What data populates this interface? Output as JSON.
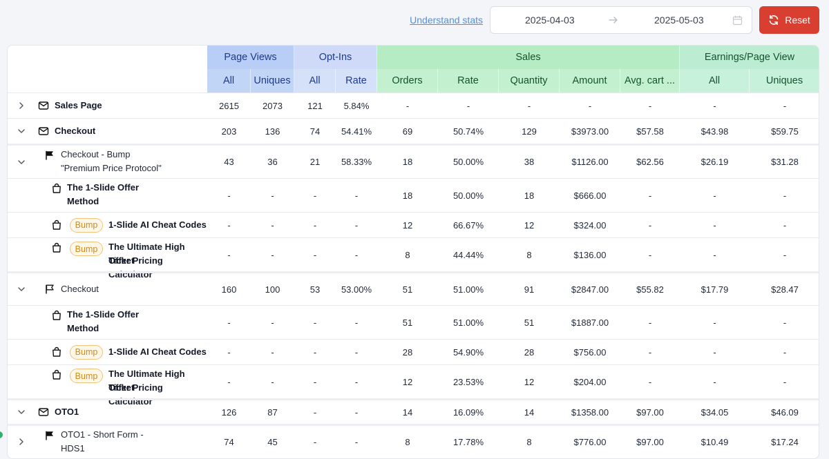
{
  "toolbar": {
    "stats_link": "Understand stats",
    "date_from": "2025-04-03",
    "date_to": "2025-05-03",
    "reset_label": "Reset"
  },
  "header": {
    "groups": {
      "page_views": "Page Views",
      "opt_ins": "Opt-Ins",
      "sales": "Sales",
      "earnings": "Earnings/Page View"
    },
    "columns": [
      "All",
      "Uniques",
      "All",
      "Rate",
      "Orders",
      "Rate",
      "Quantity",
      "Amount",
      "Avg. cart ...",
      "All",
      "Uniques"
    ]
  },
  "rows": [
    {
      "kind": "page",
      "label": "Sales Page",
      "chevron": "right",
      "values": [
        "2615",
        "2073",
        "121",
        "5.84%",
        "-",
        "-",
        "-",
        "-",
        "-",
        "-",
        "-"
      ]
    },
    {
      "kind": "page",
      "label": "Checkout",
      "chevron": "down",
      "values": [
        "203",
        "136",
        "74",
        "54.41%",
        "69",
        "50.74%",
        "129",
        "$3973.00",
        "$57.58",
        "$43.98",
        "$59.75"
      ]
    },
    {
      "kind": "variant",
      "label": "Checkout - Bump",
      "label2": "\"Premium Price Protocol\"",
      "chevron": "down",
      "flag": "filled",
      "values": [
        "43",
        "36",
        "21",
        "58.33%",
        "18",
        "50.00%",
        "38",
        "$1126.00",
        "$62.56",
        "$26.19",
        "$31.28"
      ]
    },
    {
      "kind": "product",
      "label": "The 1-Slide Offer",
      "label2": "Method",
      "values": [
        "-",
        "-",
        "-",
        "-",
        "18",
        "50.00%",
        "18",
        "$666.00",
        "-",
        "-",
        "-"
      ]
    },
    {
      "kind": "product",
      "badge": "Bump",
      "label": "1-Slide AI Cheat Codes",
      "values": [
        "-",
        "-",
        "-",
        "-",
        "12",
        "66.67%",
        "12",
        "$324.00",
        "-",
        "-",
        "-"
      ]
    },
    {
      "kind": "product",
      "badge": "Bump",
      "label": "The Ultimate High Ticket",
      "label2": "Offer Pricing Calculator",
      "values": [
        "-",
        "-",
        "-",
        "-",
        "8",
        "44.44%",
        "8",
        "$136.00",
        "-",
        "-",
        "-"
      ]
    },
    {
      "kind": "variant",
      "label": "Checkout",
      "chevron": "down",
      "flag": "outline",
      "values": [
        "160",
        "100",
        "53",
        "53.00%",
        "51",
        "51.00%",
        "91",
        "$2847.00",
        "$55.82",
        "$17.79",
        "$28.47"
      ]
    },
    {
      "kind": "product",
      "label": "The 1-Slide Offer",
      "label2": "Method",
      "values": [
        "-",
        "-",
        "-",
        "-",
        "51",
        "51.00%",
        "51",
        "$1887.00",
        "-",
        "-",
        "-"
      ]
    },
    {
      "kind": "product",
      "badge": "Bump",
      "label": "1-Slide AI Cheat Codes",
      "values": [
        "-",
        "-",
        "-",
        "-",
        "28",
        "54.90%",
        "28",
        "$756.00",
        "-",
        "-",
        "-"
      ]
    },
    {
      "kind": "product",
      "badge": "Bump",
      "label": "The Ultimate High Ticket",
      "label2": "Offer Pricing Calculator",
      "values": [
        "-",
        "-",
        "-",
        "-",
        "12",
        "23.53%",
        "12",
        "$204.00",
        "-",
        "-",
        "-"
      ]
    },
    {
      "kind": "page",
      "label": "OTO1",
      "chevron": "down",
      "values": [
        "126",
        "87",
        "-",
        "-",
        "14",
        "16.09%",
        "14",
        "$1358.00",
        "$97.00",
        "$34.05",
        "$46.09"
      ]
    },
    {
      "kind": "variant",
      "label": "OTO1 - Short Form -",
      "label2": "HDS1",
      "chevron": "right",
      "flag": "filled",
      "values": [
        "74",
        "45",
        "-",
        "-",
        "8",
        "17.78%",
        "8",
        "$776.00",
        "$97.00",
        "$10.49",
        "$17.24"
      ]
    }
  ],
  "icons": {
    "arrow": "arrow-right-icon",
    "calendar": "calendar-icon",
    "reset": "refresh-icon",
    "mail": "mail-icon",
    "flag": "flag-icon",
    "bag": "shopping-bag-icon",
    "chevron": "chevron-icon"
  },
  "colors": {
    "reset_button": "#d93f30",
    "page_views_header": "#b8cef6",
    "opt_ins_header": "#cedaf8",
    "sales_header": "#b5ecc4",
    "earnings_header": "#bcedd3",
    "bump_badge": "#f0c27a"
  }
}
